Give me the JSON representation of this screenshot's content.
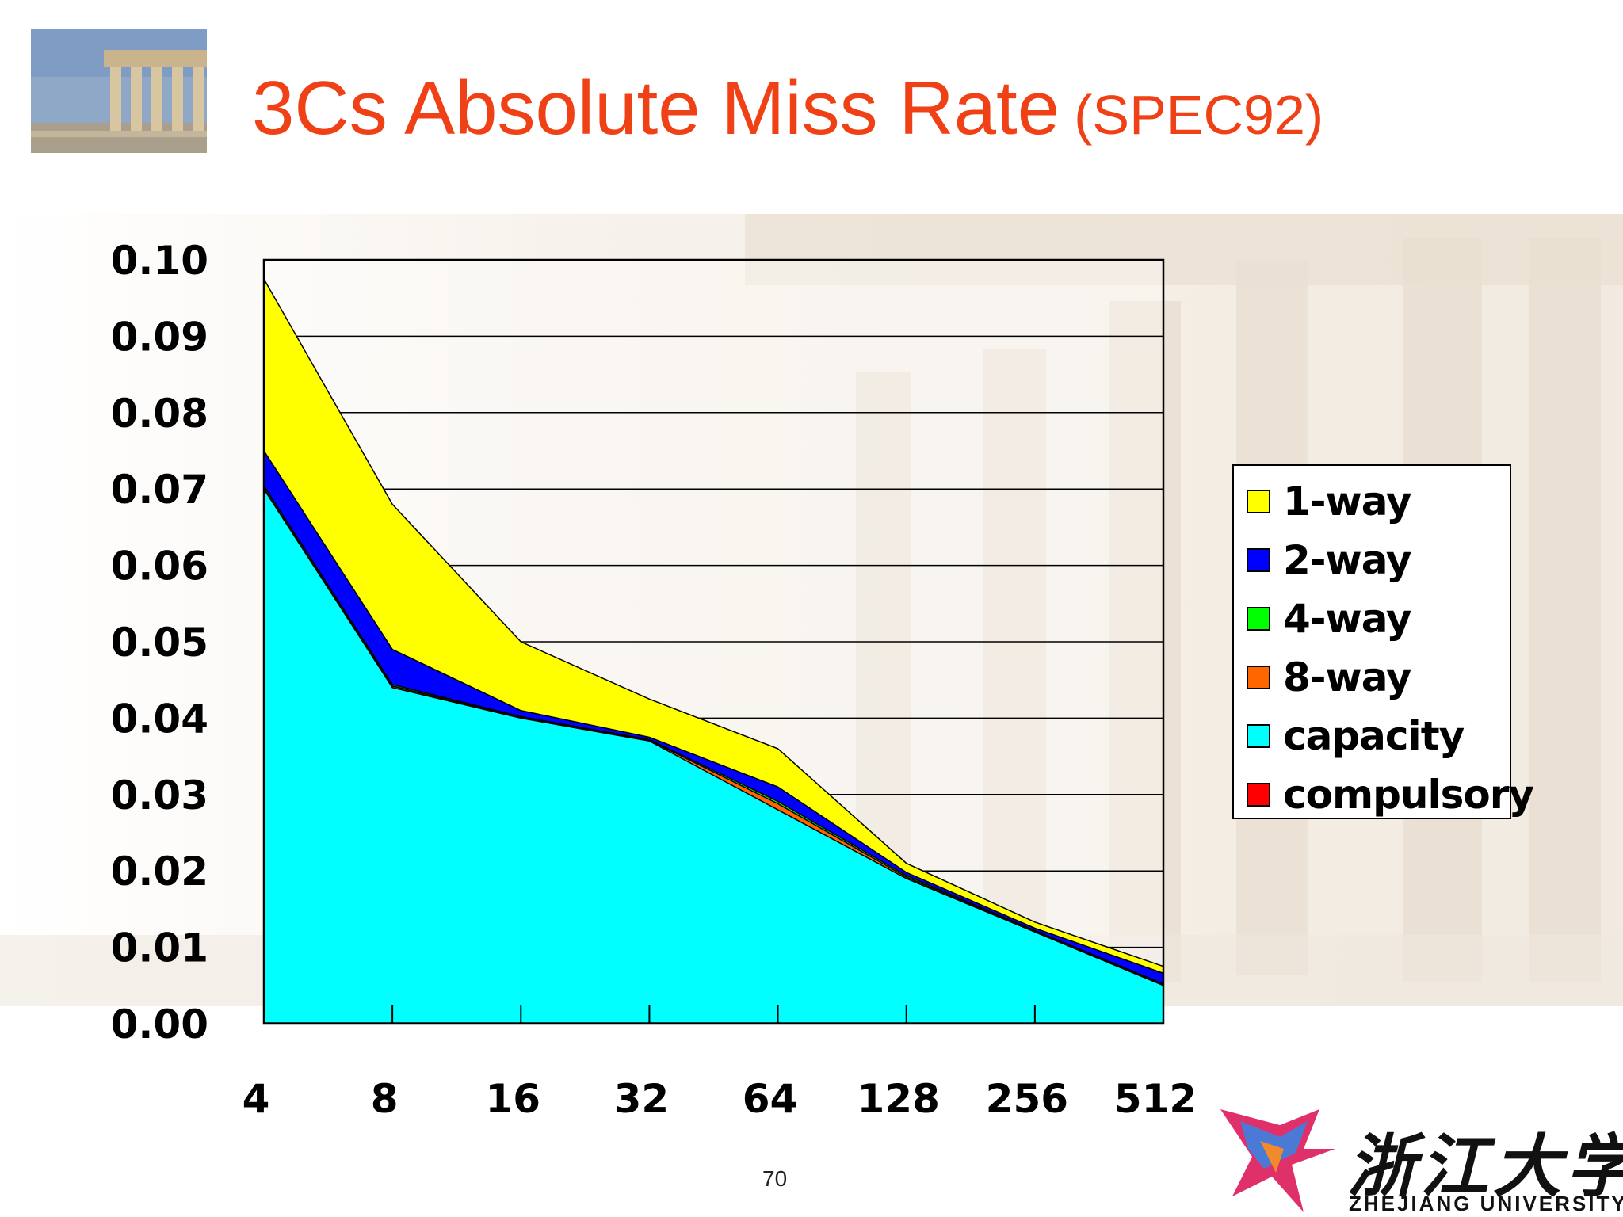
{
  "title": {
    "main": "3Cs Absolute Miss Rate",
    "sub": "(SPEC92)"
  },
  "page_number": "70",
  "logo": {
    "chinese": "浙江大学",
    "english": "ZHEJIANG UNIVERSITY"
  },
  "legend": [
    {
      "label": "1-way",
      "color": "#ffff00"
    },
    {
      "label": "2-way",
      "color": "#0000ff"
    },
    {
      "label": "4-way",
      "color": "#00ff00"
    },
    {
      "label": "8-way",
      "color": "#ff6600"
    },
    {
      "label": "capacity",
      "color": "#00ffff"
    },
    {
      "label": "compulsory",
      "color": "#ff0000"
    }
  ],
  "chart_data": {
    "type": "area",
    "stacked": true,
    "title": "3Cs Absolute Miss Rate (SPEC92)",
    "xlabel": "",
    "ylabel": "",
    "categories": [
      "4",
      "8",
      "16",
      "32",
      "64",
      "128",
      "256",
      "512"
    ],
    "ylim": [
      0,
      0.1
    ],
    "yticks": [
      "0.00",
      "0.01",
      "0.02",
      "0.03",
      "0.04",
      "0.05",
      "0.06",
      "0.07",
      "0.08",
      "0.09",
      "0.10"
    ],
    "grid": true,
    "legend_position": "right",
    "series": [
      {
        "name": "compulsory",
        "color": "#ff0000",
        "values": [
          0.0001,
          0.0001,
          0.0001,
          0.0001,
          0.0001,
          0.0001,
          0.0001,
          0.0001
        ]
      },
      {
        "name": "capacity",
        "color": "#00ffff",
        "values": [
          0.0699,
          0.0439,
          0.0399,
          0.0369,
          0.0279,
          0.0189,
          0.0119,
          0.0049
        ]
      },
      {
        "name": "8-way",
        "color": "#ff6600",
        "values": [
          0.0001,
          0.0002,
          0.0001,
          0.0001,
          0.0008,
          0.0002,
          0.0001,
          0.0001
        ]
      },
      {
        "name": "4-way",
        "color": "#00ff00",
        "values": [
          0.0003,
          0.0002,
          0.0001,
          0.0001,
          0.0003,
          0.0002,
          0.0001,
          0.0001
        ]
      },
      {
        "name": "2-way",
        "color": "#0000ff",
        "values": [
          0.0046,
          0.0046,
          0.0008,
          0.0003,
          0.0019,
          0.0004,
          0.0003,
          0.0014
        ]
      },
      {
        "name": "1-way",
        "color": "#ffff00",
        "values": [
          0.0225,
          0.019,
          0.009,
          0.005,
          0.005,
          0.0012,
          0.0008,
          0.0009
        ]
      }
    ]
  }
}
